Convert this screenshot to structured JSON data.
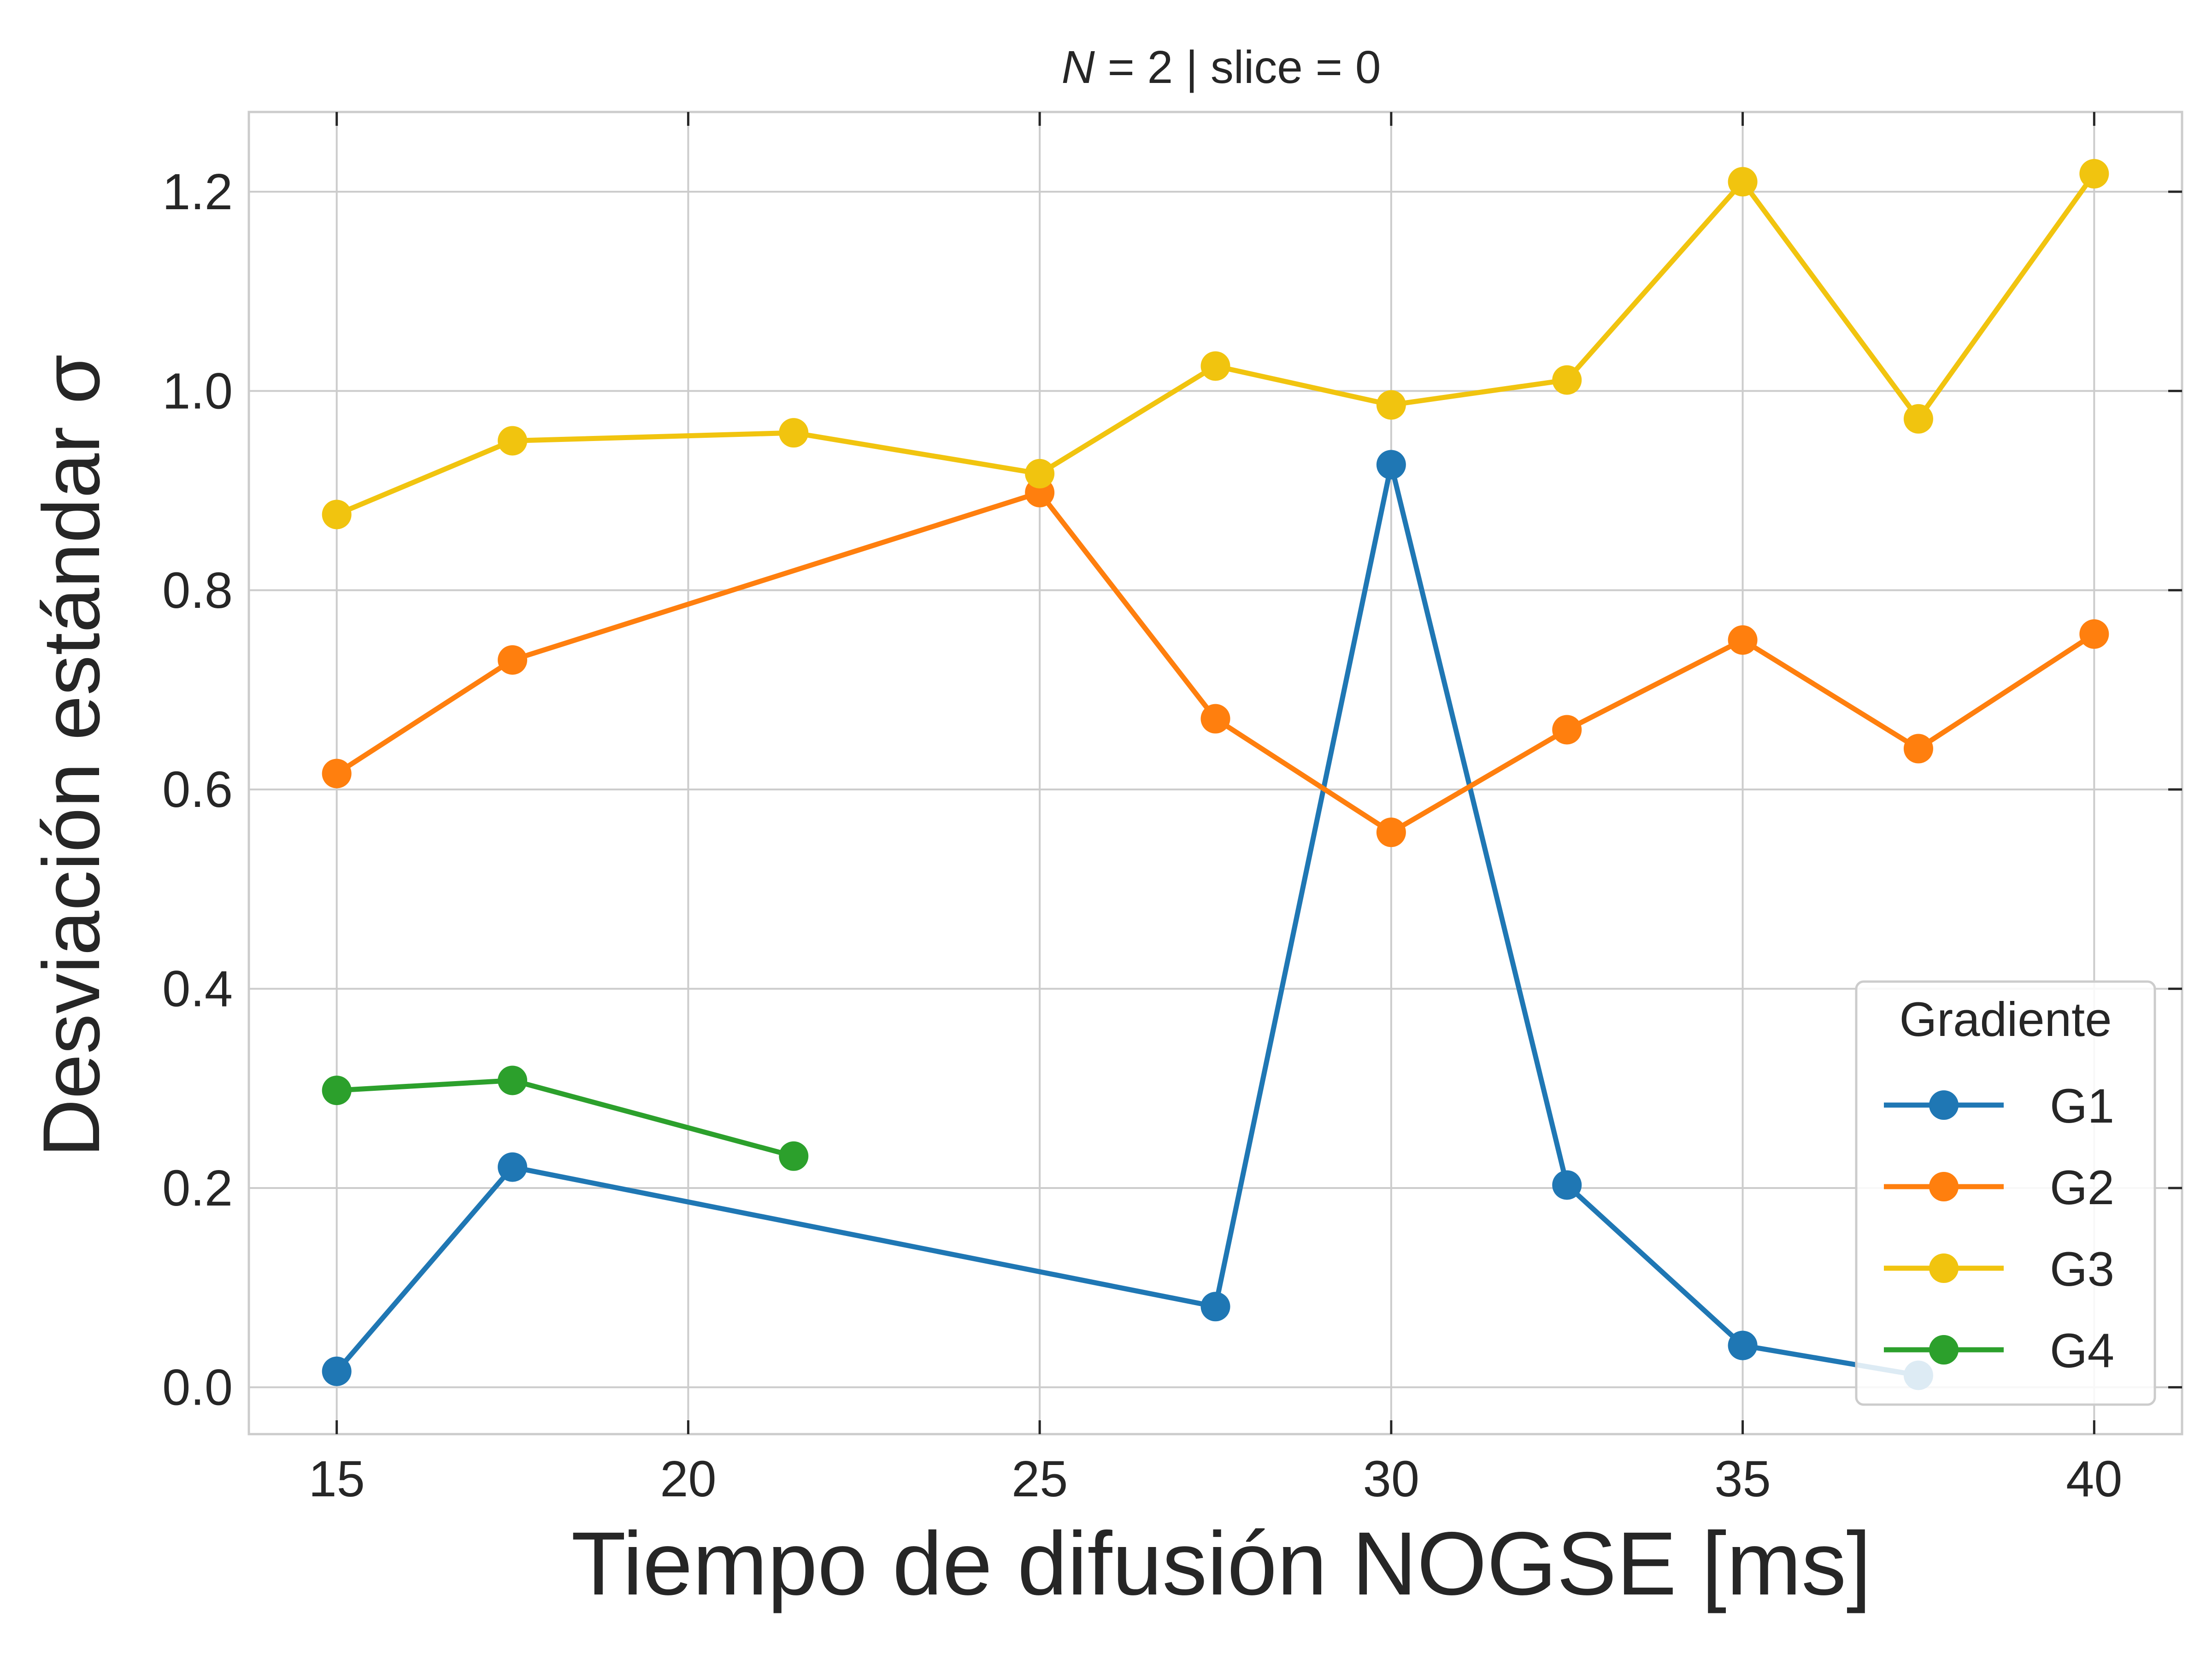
{
  "chart_data": {
    "type": "line",
    "title": "N = 2 | slice = 0",
    "title_parts": {
      "italic": "N",
      "rest": " = 2 | slice = 0"
    },
    "xlabel": "Tiempo de difusión NOGSE [ms]",
    "ylabel": "Desviación estándar σ",
    "xlim": [
      13.75,
      41.25
    ],
    "ylim": [
      -0.047,
      1.28
    ],
    "xticks": [
      15,
      20,
      25,
      30,
      35,
      40
    ],
    "xtick_labels": [
      "15",
      "20",
      "25",
      "30",
      "35",
      "40"
    ],
    "yticks": [
      0.0,
      0.2,
      0.4,
      0.6,
      0.8,
      1.0,
      1.2
    ],
    "ytick_labels": [
      "0.0",
      "0.2",
      "0.4",
      "0.6",
      "0.8",
      "1.0",
      "1.2"
    ],
    "grid": true,
    "legend": {
      "title": "Gradiente",
      "placement": "lower right"
    },
    "series": [
      {
        "name": "G1",
        "color": "#1f77b4",
        "x": [
          15,
          17.5,
          27.5,
          30,
          32.5,
          35,
          37.5
        ],
        "y": [
          0.016,
          0.221,
          0.081,
          0.926,
          0.203,
          0.042,
          0.012
        ]
      },
      {
        "name": "G2",
        "color": "#ff7f0e",
        "x": [
          15,
          17.5,
          25,
          27.5,
          30,
          32.5,
          35,
          37.5,
          40
        ],
        "y": [
          0.616,
          0.73,
          0.898,
          0.671,
          0.557,
          0.66,
          0.75,
          0.641,
          0.756
        ]
      },
      {
        "name": "G3",
        "color": "#f1c40f",
        "x": [
          15,
          17.5,
          21.5,
          25,
          27.5,
          30,
          32.5,
          35,
          37.5,
          40
        ],
        "y": [
          0.876,
          0.95,
          0.958,
          0.917,
          1.025,
          0.986,
          1.011,
          1.21,
          0.972,
          1.218
        ]
      },
      {
        "name": "G4",
        "color": "#2ca02c",
        "x": [
          15,
          17.5,
          21.5
        ],
        "y": [
          0.298,
          0.308,
          0.232
        ]
      }
    ]
  }
}
